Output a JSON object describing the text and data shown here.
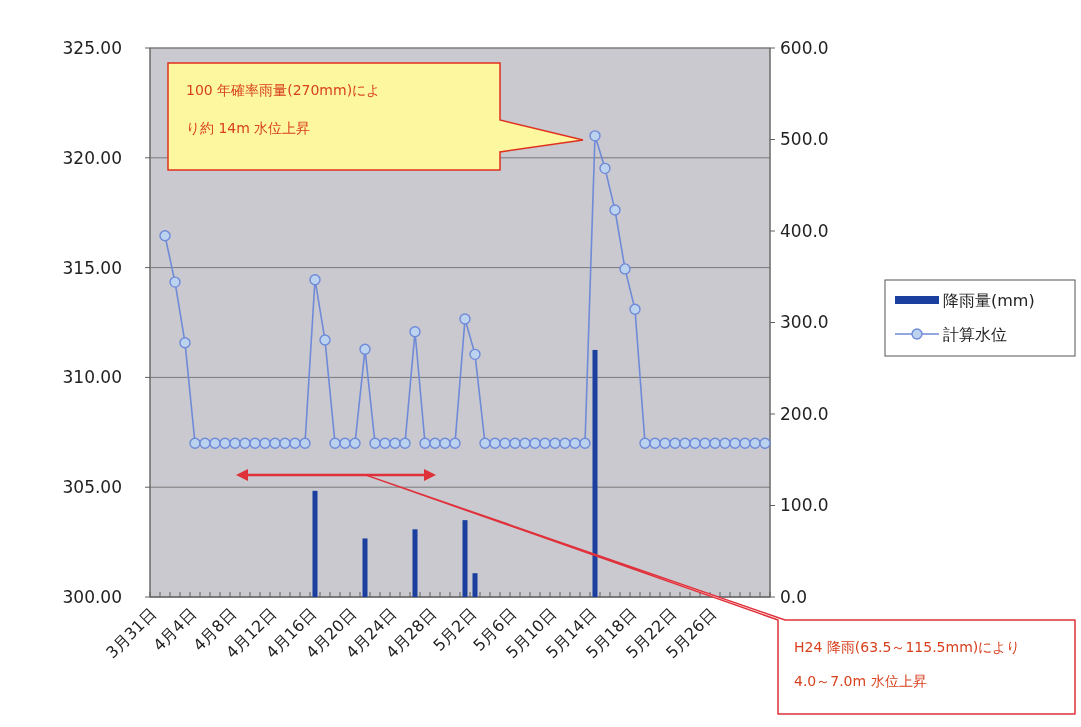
{
  "chart_data": {
    "type": "bar",
    "categories": [
      "3月31日",
      null,
      null,
      null,
      "4月4日",
      null,
      null,
      null,
      "4月8日",
      null,
      null,
      null,
      "4月12日",
      null,
      null,
      null,
      "4月16日",
      null,
      null,
      null,
      "4月20日",
      null,
      null,
      null,
      "4月24日",
      null,
      null,
      null,
      "4月28日",
      null,
      null,
      null,
      "5月2日",
      null,
      null,
      null,
      "5月6日",
      null,
      null,
      null,
      "5月10日",
      null,
      null,
      null,
      "5月14日",
      null,
      null,
      null,
      "5月18日",
      null,
      null,
      null,
      "5月22日",
      null,
      null,
      null,
      "5月26日",
      null,
      null,
      null,
      null,
      null
    ],
    "series": [
      {
        "name": "降雨量(mm)",
        "axis": "y2",
        "color": "#1a3f9e",
        "values": [
          null,
          null,
          null,
          null,
          null,
          null,
          null,
          null,
          null,
          null,
          null,
          null,
          null,
          null,
          null,
          null,
          116,
          null,
          null,
          null,
          null,
          64,
          null,
          null,
          null,
          null,
          74,
          null,
          null,
          null,
          null,
          84,
          26,
          null,
          null,
          null,
          null,
          null,
          null,
          null,
          null,
          null,
          null,
          null,
          270,
          null,
          null,
          null,
          null,
          null,
          null,
          null,
          null,
          null,
          null,
          null,
          null,
          null,
          null,
          null,
          null,
          null
        ]
      },
      {
        "name": "計算水位",
        "type": "line",
        "color": "#6f8ad8",
        "values": [
          null,
          316.45,
          314.34,
          311.58,
          307,
          307,
          307,
          307,
          307,
          307,
          307,
          307,
          307,
          307,
          307,
          307,
          314.45,
          311.7,
          307,
          307,
          307,
          311.28,
          307,
          307,
          307,
          307,
          312.08,
          307,
          307,
          307,
          307,
          312.66,
          311.05,
          307,
          307,
          307,
          307,
          307,
          307,
          307,
          307,
          307,
          307,
          307,
          321.0,
          319.52,
          317.62,
          314.94,
          313.1,
          307,
          307,
          307,
          307,
          307,
          307,
          307,
          307,
          307,
          307,
          307,
          307,
          307
        ]
      }
    ],
    "ylim": [
      300,
      325
    ],
    "yticks": [
      {
        "value": 300,
        "label": "300.00"
      },
      {
        "value": 305,
        "label": "305.00"
      },
      {
        "value": 310,
        "label": "310.00"
      },
      {
        "value": 315,
        "label": "315.00"
      },
      {
        "value": 320,
        "label": "320.00"
      },
      {
        "value": 325,
        "label": "325.00"
      }
    ],
    "y2lim": [
      0,
      600
    ],
    "y2ticks": [
      {
        "value": 0,
        "label": "0.0"
      },
      {
        "value": 100,
        "label": "100.0"
      },
      {
        "value": 200,
        "label": "200.0"
      },
      {
        "value": 300,
        "label": "300.0"
      },
      {
        "value": 400,
        "label": "400.0"
      },
      {
        "value": 500,
        "label": "500.0"
      },
      {
        "value": 600,
        "label": "600.0"
      }
    ],
    "grid": "y",
    "legend": "right",
    "marker": "circle",
    "line_style": "solid",
    "annotations": [
      "100 年確率雨量(270mm)により約 14m 水位上昇",
      "H24 降雨(63.5～115.5mm)により\n4.0～7.0m 水位上昇"
    ]
  }
}
